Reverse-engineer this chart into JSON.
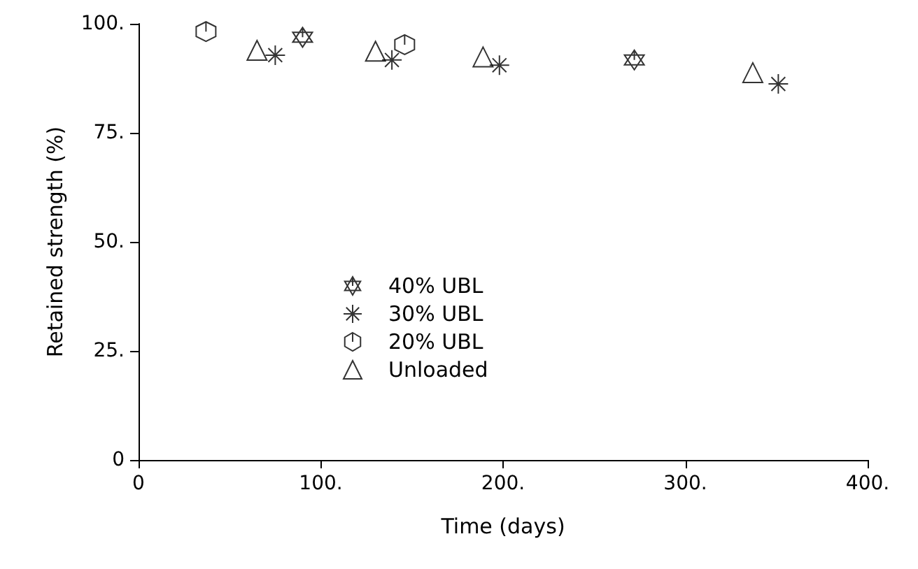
{
  "chart_data": {
    "type": "scatter",
    "xlabel": "Time (days)",
    "ylabel": "Retained strength (%)",
    "xlim": [
      0,
      400
    ],
    "xticks": [
      0,
      {
        "value": 100,
        "label": "100."
      },
      {
        "value": 200,
        "label": "200."
      },
      {
        "value": 300,
        "label": "300."
      },
      {
        "value": 400,
        "label": "400."
      }
    ],
    "ylim": [
      0,
      100
    ],
    "yticks": [
      0,
      {
        "value": 25,
        "label": "25."
      },
      {
        "value": 50,
        "label": "50."
      },
      {
        "value": 75,
        "label": "75."
      },
      {
        "value": 100,
        "label": "100."
      }
    ],
    "grid": false,
    "legend": "bottom left",
    "series": [
      {
        "name": "40% UBL",
        "color": "#000000",
        "x": [
          90,
          272
        ],
        "values": [
          96.9,
          91.7
        ]
      },
      {
        "name": "30% UBL",
        "color": "#000000",
        "marker": "cross",
        "x": [
          75,
          139,
          198,
          351
        ],
        "values": [
          92.8,
          91.7,
          90.5,
          86.2
        ]
      },
      {
        "name": "20% UBL",
        "color": "#000000",
        "x": [
          37,
          146
        ],
        "values": [
          98.2,
          95.2
        ]
      },
      {
        "name": "Unloaded",
        "color": "#000000",
        "marker": "triangle",
        "x": [
          65,
          130,
          189,
          337
        ],
        "values": [
          93.9,
          93.7,
          92.4,
          88.8
        ]
      }
    ]
  }
}
